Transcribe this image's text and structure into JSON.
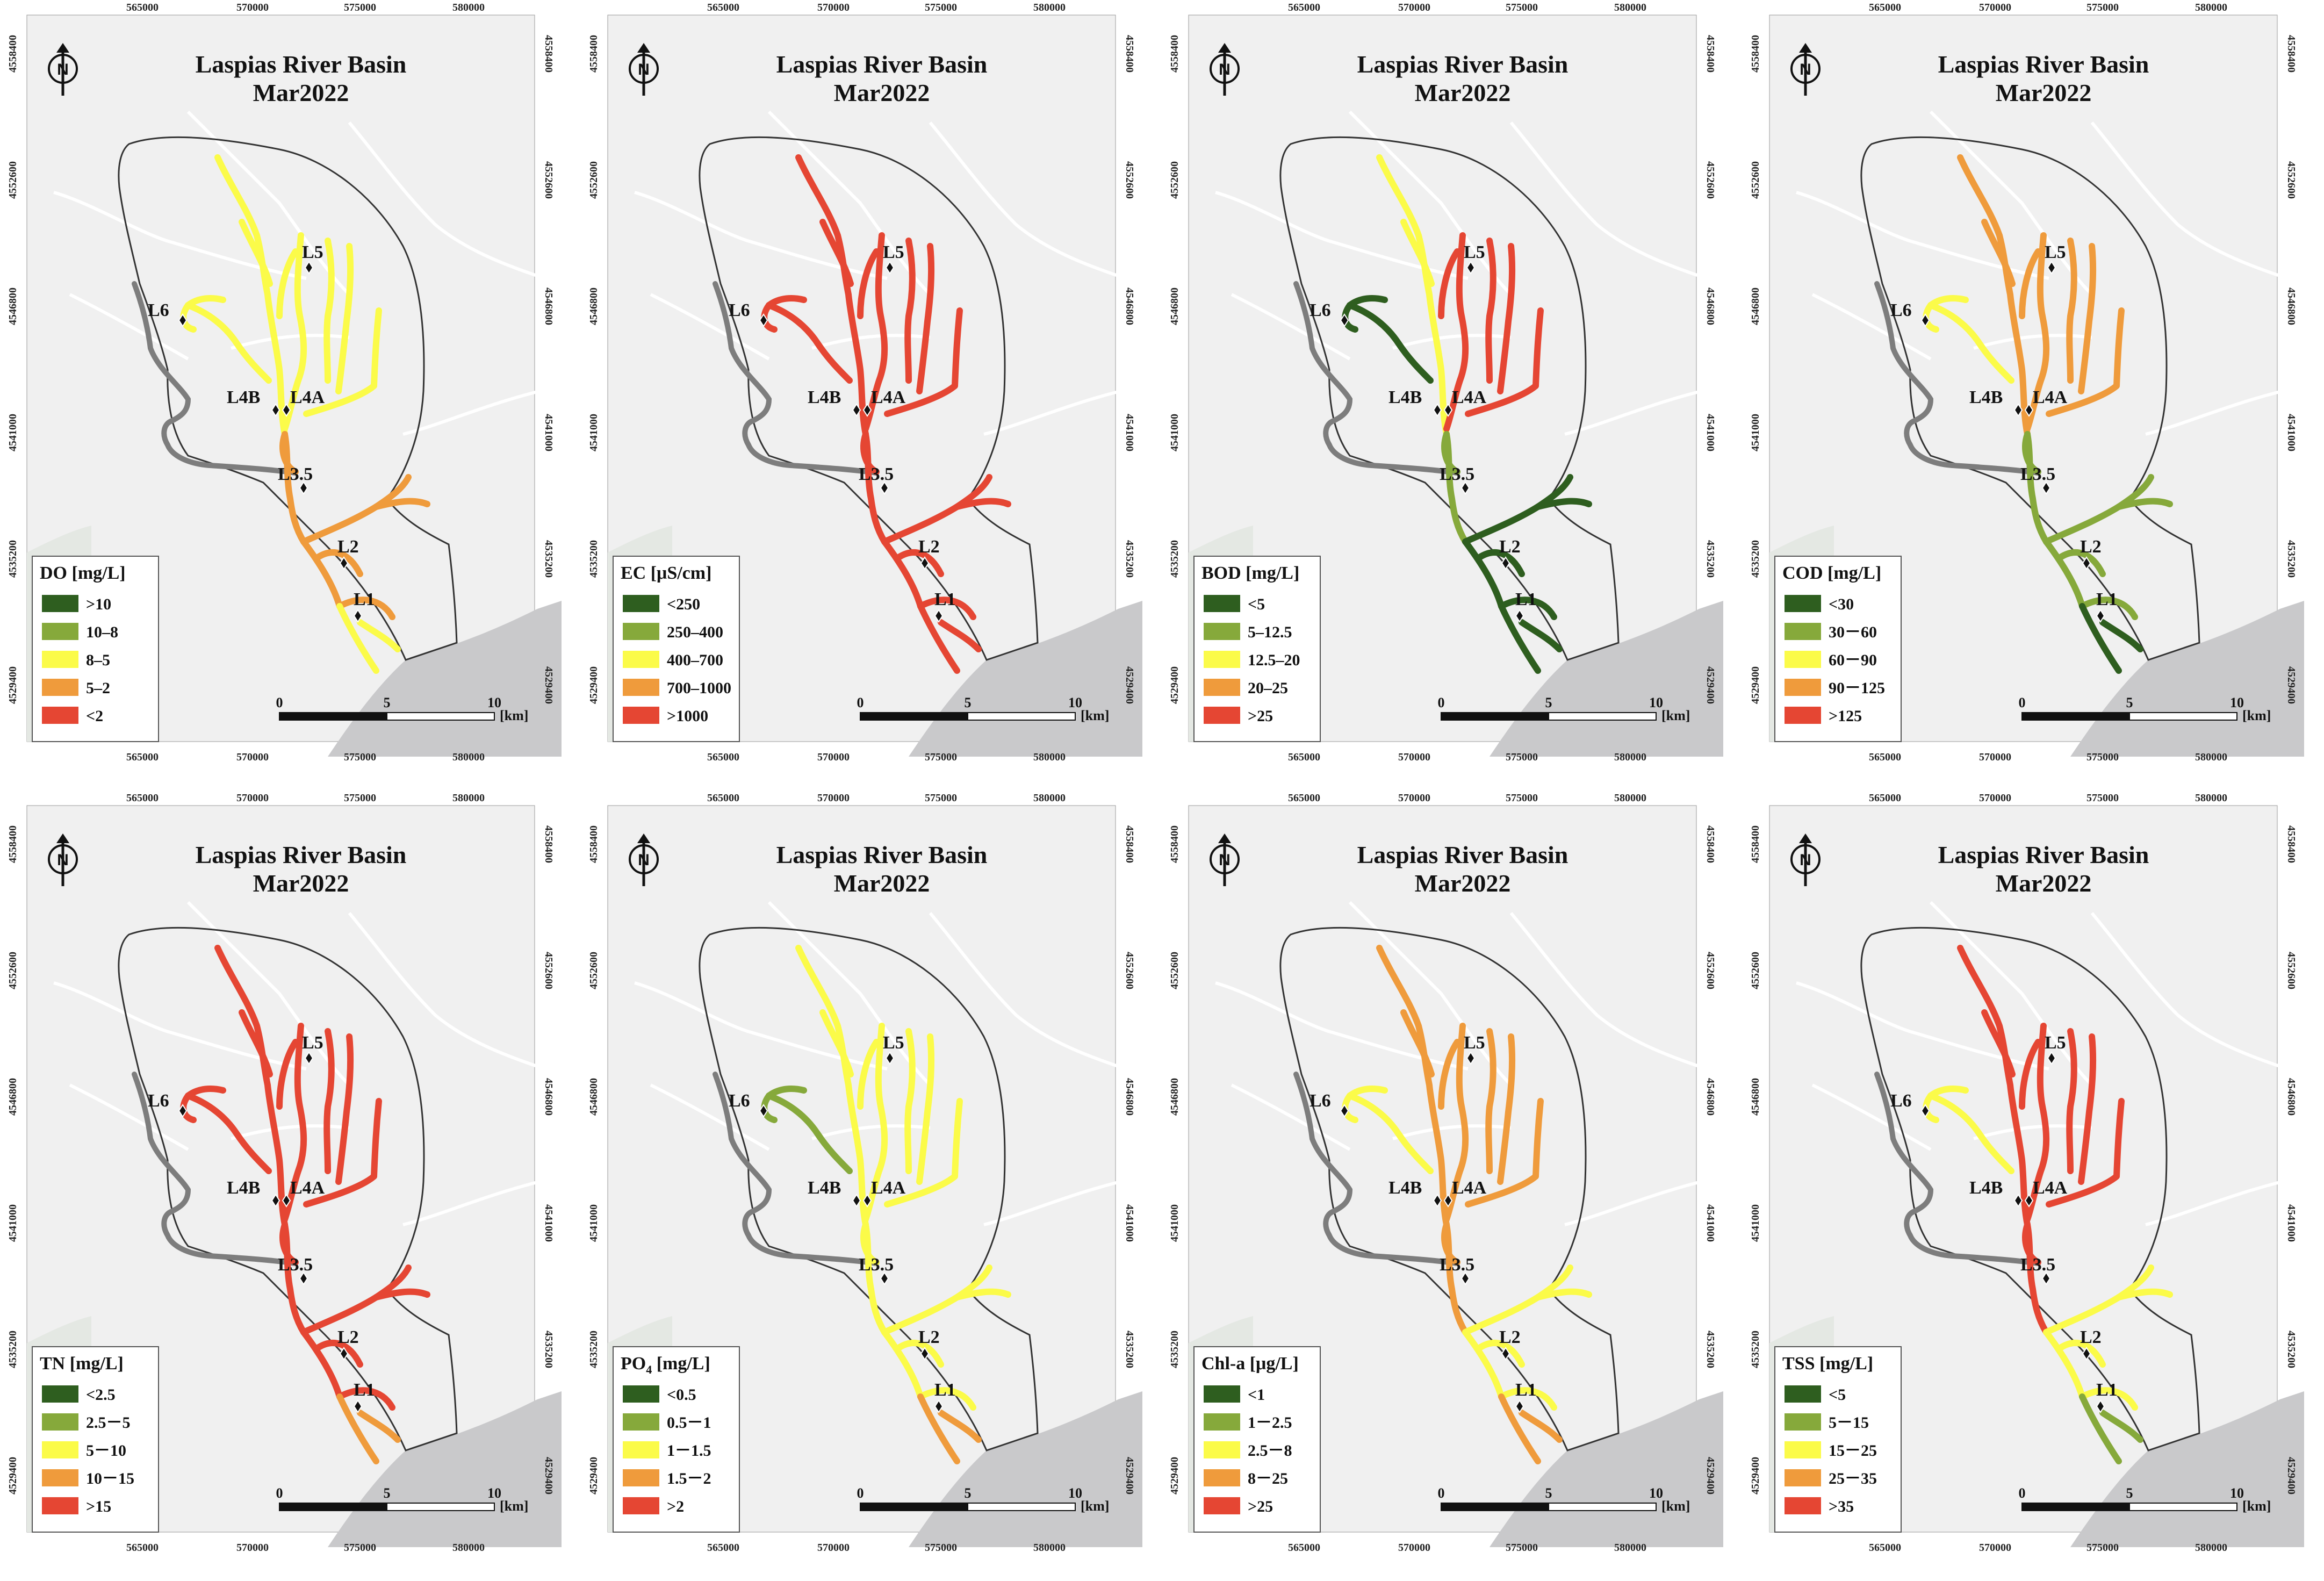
{
  "figure": {
    "map_title": "Laspias River Basin",
    "date_label": "Mar2022",
    "north_label": "N",
    "x_ticks": [
      "565000",
      "570000",
      "575000",
      "580000"
    ],
    "y_ticks": [
      "4558400",
      "4552600",
      "4546800",
      "4541000",
      "4535200",
      "4529400"
    ],
    "scale_labels": [
      "0",
      "5",
      "10"
    ],
    "scale_unit": "[km]",
    "site_labels": [
      "L6",
      "L5",
      "L4B",
      "L4A",
      "L3.5",
      "L2",
      "L1"
    ]
  },
  "class_colors": [
    "#2e5e1f",
    "#86a93b",
    "#fbfb49",
    "#ef9b3c",
    "#e54633"
  ],
  "chart_data": [
    {
      "parameter": "DO",
      "legend_title": "DO [mg/L]",
      "classes": [
        ">10",
        "10–8",
        "8–5",
        "5–2",
        "<2"
      ],
      "segment_classes": {
        "upper_main": 2,
        "east_tribs": 2,
        "west_trib": 2,
        "middle": 3,
        "lower": 3,
        "mouth": 2
      }
    },
    {
      "parameter": "EC",
      "legend_title": "EC [μS/cm]",
      "classes": [
        "<250",
        "250–400",
        "400–700",
        "700–1000",
        ">1000"
      ],
      "segment_classes": {
        "upper_main": 4,
        "east_tribs": 4,
        "west_trib": 4,
        "middle": 4,
        "lower": 4,
        "mouth": 4
      }
    },
    {
      "parameter": "BOD",
      "legend_title": "BOD [mg/L]",
      "classes": [
        "<5",
        "5–12.5",
        "12.5–20",
        "20–25",
        ">25"
      ],
      "segment_classes": {
        "upper_main": 2,
        "east_tribs": 4,
        "west_trib": 0,
        "middle": 1,
        "lower": 0,
        "mouth": 0
      }
    },
    {
      "parameter": "COD",
      "legend_title": "COD [mg/L]",
      "classes": [
        "<30",
        "30－60",
        "60－90",
        "90－125",
        ">125"
      ],
      "segment_classes": {
        "upper_main": 3,
        "east_tribs": 3,
        "west_trib": 2,
        "middle": 1,
        "lower": 1,
        "mouth": 0
      }
    },
    {
      "parameter": "TN",
      "legend_title": "TN [mg/L]",
      "classes": [
        "<2.5",
        "2.5－5",
        "5－10",
        "10－15",
        ">15"
      ],
      "segment_classes": {
        "upper_main": 4,
        "east_tribs": 4,
        "west_trib": 4,
        "middle": 4,
        "lower": 4,
        "mouth": 3
      }
    },
    {
      "parameter": "PO4",
      "legend_title": "PO",
      "legend_subscript": "4",
      "legend_unit": " [mg/L]",
      "classes": [
        "<0.5",
        "0.5－1",
        "1－1.5",
        "1.5－2",
        ">2"
      ],
      "segment_classes": {
        "upper_main": 2,
        "east_tribs": 2,
        "west_trib": 1,
        "middle": 2,
        "lower": 2,
        "mouth": 3
      }
    },
    {
      "parameter": "Chl-a",
      "legend_title": "Chl-a [μg/L]",
      "classes": [
        "<1",
        "1－2.5",
        "2.5－8",
        "8－25",
        ">25"
      ],
      "segment_classes": {
        "upper_main": 3,
        "east_tribs": 3,
        "west_trib": 2,
        "middle": 3,
        "lower": 2,
        "mouth": 3
      }
    },
    {
      "parameter": "TSS",
      "legend_title": "TSS [mg/L]",
      "classes": [
        "<5",
        "5－15",
        "15－25",
        "25－35",
        ">35"
      ],
      "segment_classes": {
        "upper_main": 4,
        "east_tribs": 4,
        "west_trib": 2,
        "middle": 4,
        "lower": 2,
        "mouth": 1
      }
    }
  ]
}
